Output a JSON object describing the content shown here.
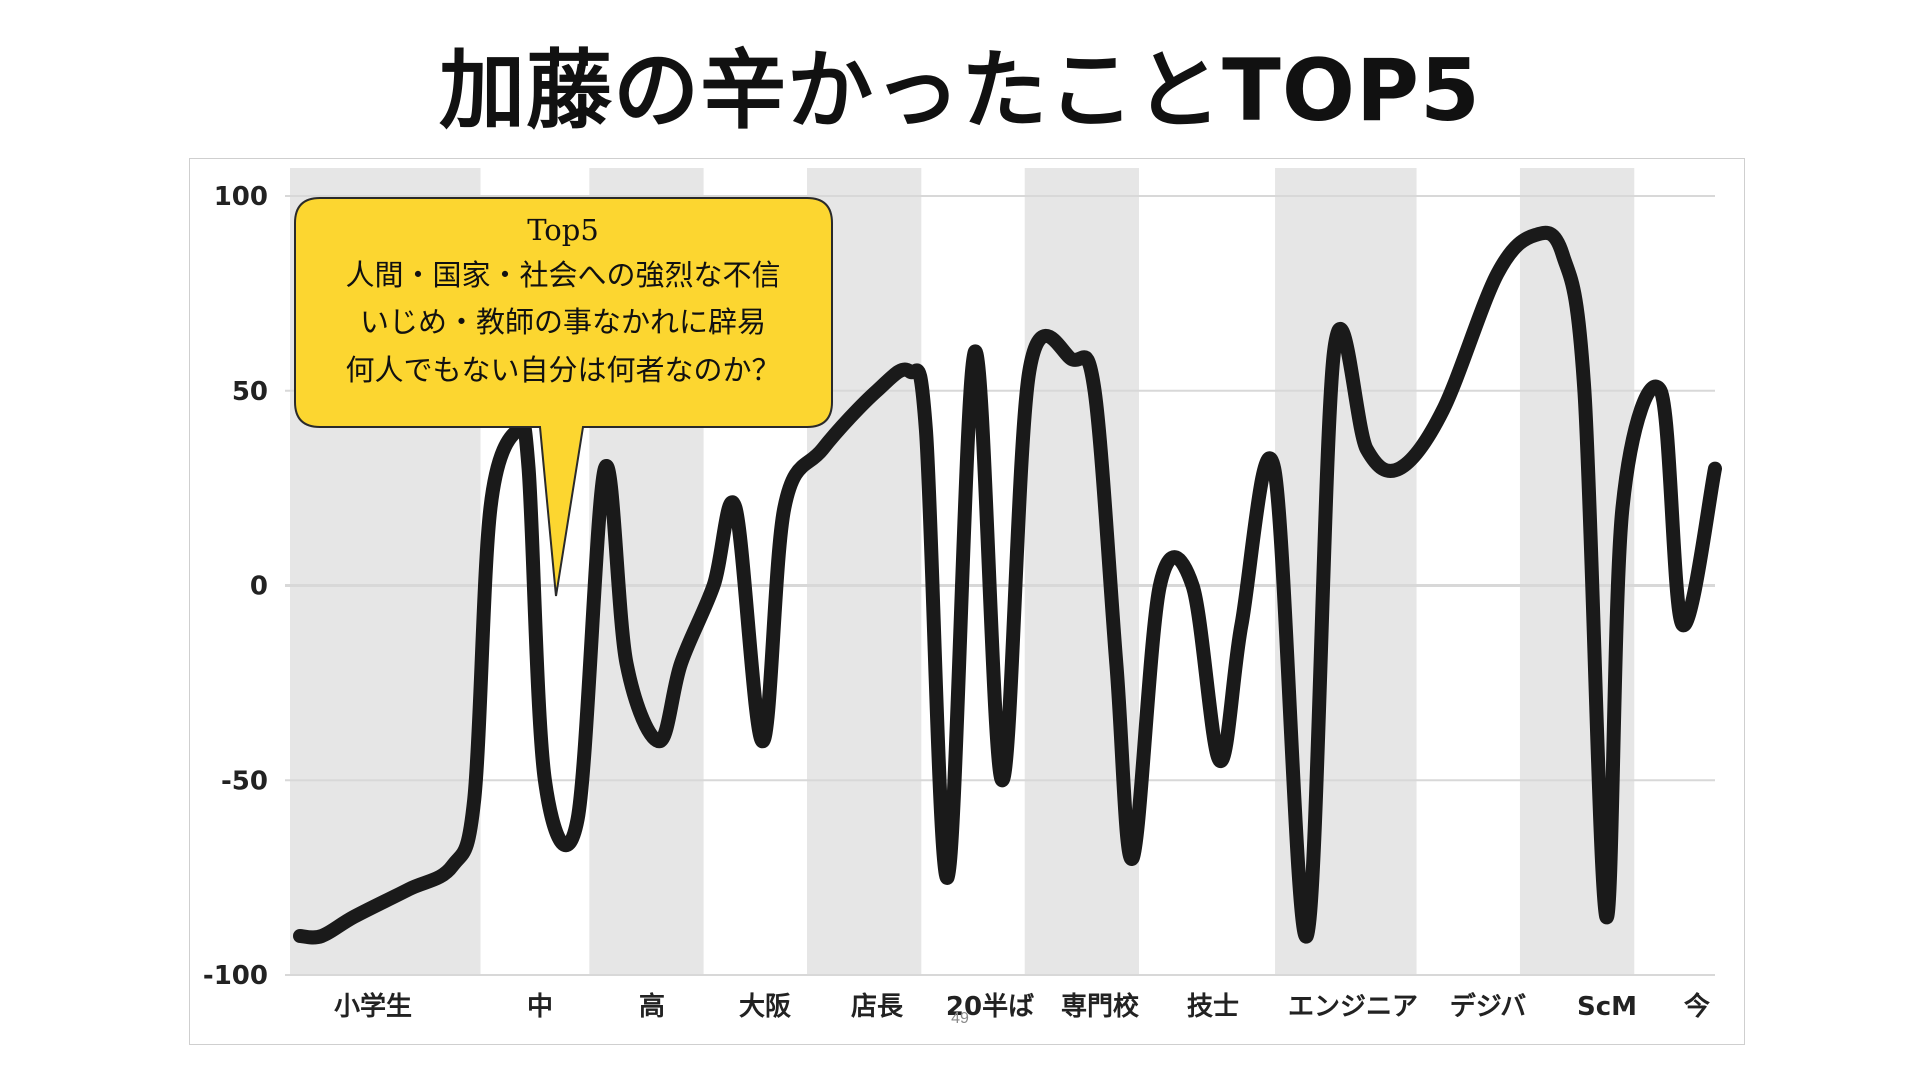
{
  "slide": {
    "title": "加藤の辛かったことTOP5",
    "page_number": "49"
  },
  "callout": {
    "heading": "Top5",
    "lines": [
      "人間・国家・社会への強烈な不信",
      "いじめ・教師の事なかれに辟易",
      "何人でもない自分は何者なのか？"
    ],
    "fill_color": "#fcd630"
  },
  "chart_data": {
    "type": "line",
    "title": "",
    "xlabel": "",
    "ylabel": "",
    "ylim": [
      -100,
      100
    ],
    "yticks": [
      100,
      50,
      0,
      -50,
      -100
    ],
    "grid": true,
    "line_color": "#1a1a1a",
    "band_color": "#e6e6e6",
    "categories": [
      "小学生",
      "中",
      "高",
      "大阪",
      "店長",
      "20半ば",
      "専門校",
      "技士",
      "エンジニア",
      "デジバ",
      "ScM",
      "今"
    ],
    "series": [
      {
        "points": [
          {
            "x": 0.0,
            "y": -90
          },
          {
            "x": 0.2,
            "y": -90
          },
          {
            "x": 0.5,
            "y": -85
          },
          {
            "x": 1.0,
            "y": -78
          },
          {
            "x": 1.4,
            "y": -72
          },
          {
            "x": 1.6,
            "y": -55
          },
          {
            "x": 1.75,
            "y": 20
          },
          {
            "x": 2.0,
            "y": 40
          },
          {
            "x": 2.1,
            "y": 30
          },
          {
            "x": 2.25,
            "y": -50
          },
          {
            "x": 2.55,
            "y": -60
          },
          {
            "x": 2.8,
            "y": 30
          },
          {
            "x": 3.0,
            "y": -20
          },
          {
            "x": 3.3,
            "y": -40
          },
          {
            "x": 3.5,
            "y": -20
          },
          {
            "x": 3.8,
            "y": 0
          },
          {
            "x": 4.0,
            "y": 20
          },
          {
            "x": 4.25,
            "y": -40
          },
          {
            "x": 4.45,
            "y": 20
          },
          {
            "x": 4.8,
            "y": 35
          },
          {
            "x": 5.3,
            "y": 50
          },
          {
            "x": 5.6,
            "y": 55
          },
          {
            "x": 5.75,
            "y": 40
          },
          {
            "x": 5.95,
            "y": -75
          },
          {
            "x": 6.2,
            "y": 60
          },
          {
            "x": 6.45,
            "y": -50
          },
          {
            "x": 6.7,
            "y": 55
          },
          {
            "x": 7.1,
            "y": 58
          },
          {
            "x": 7.3,
            "y": 50
          },
          {
            "x": 7.5,
            "y": -20
          },
          {
            "x": 7.65,
            "y": -70
          },
          {
            "x": 7.9,
            "y": 0
          },
          {
            "x": 8.2,
            "y": 0
          },
          {
            "x": 8.45,
            "y": -45
          },
          {
            "x": 8.65,
            "y": -10
          },
          {
            "x": 8.95,
            "y": 30
          },
          {
            "x": 9.25,
            "y": -90
          },
          {
            "x": 9.5,
            "y": 60
          },
          {
            "x": 9.8,
            "y": 35
          },
          {
            "x": 10.1,
            "y": 30
          },
          {
            "x": 10.5,
            "y": 45
          },
          {
            "x": 11.0,
            "y": 80
          },
          {
            "x": 11.35,
            "y": 90
          },
          {
            "x": 11.6,
            "y": 85
          },
          {
            "x": 11.8,
            "y": 50
          },
          {
            "x": 12.0,
            "y": -85
          },
          {
            "x": 12.15,
            "y": 20
          },
          {
            "x": 12.5,
            "y": 50
          },
          {
            "x": 12.7,
            "y": -10
          },
          {
            "x": 13.0,
            "y": 30
          }
        ]
      }
    ]
  }
}
